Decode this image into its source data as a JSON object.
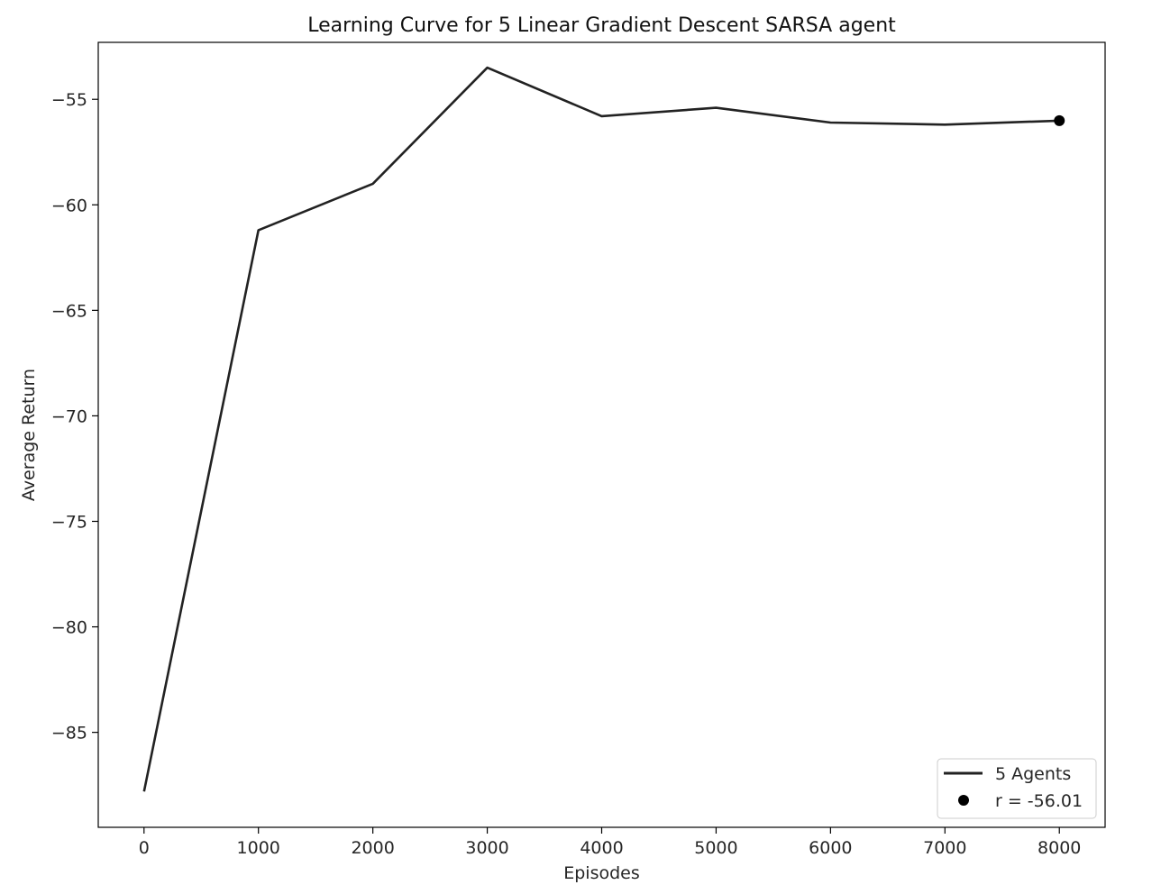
{
  "chart_data": {
    "type": "line",
    "title": "Learning Curve for 5 Linear Gradient Descent SARSA agent",
    "xlabel": "Episodes",
    "ylabel": "Average Return",
    "xlim": [
      -400,
      8400
    ],
    "ylim": [
      -89.5,
      -52.3
    ],
    "xticks": [
      0,
      1000,
      2000,
      3000,
      4000,
      5000,
      6000,
      7000,
      8000
    ],
    "xtick_labels": [
      "0",
      "1000",
      "2000",
      "3000",
      "4000",
      "5000",
      "6000",
      "7000",
      "8000"
    ],
    "yticks": [
      -55,
      -60,
      -65,
      -70,
      -75,
      -80,
      -85
    ],
    "ytick_labels": [
      "−55",
      "−60",
      "−65",
      "−70",
      "−75",
      "−80",
      "−85"
    ],
    "grid": false,
    "legend_position": "bottom-right",
    "series": [
      {
        "name": "5 Agents",
        "color": "#222222",
        "x": [
          0,
          1000,
          2000,
          3000,
          4000,
          5000,
          6000,
          7000,
          8000
        ],
        "y": [
          -87.8,
          -61.2,
          -59.0,
          -53.5,
          -55.8,
          -55.4,
          -56.1,
          -56.2,
          -56.01
        ]
      }
    ],
    "marker": {
      "name": "r = -56.01",
      "color": "#000000",
      "x": 8000,
      "y": -56.01
    }
  }
}
